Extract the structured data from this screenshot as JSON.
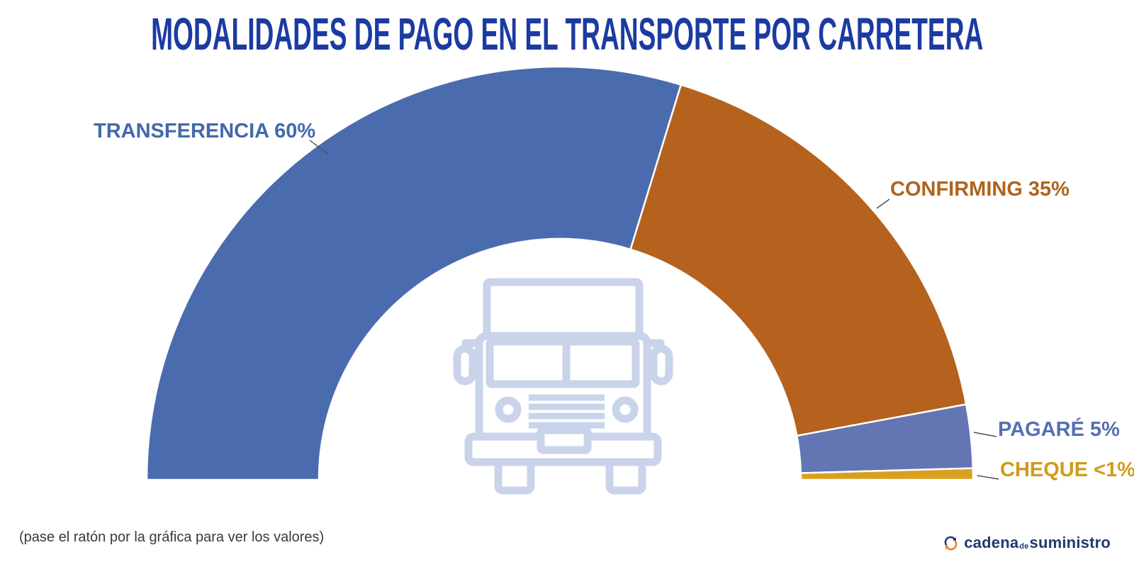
{
  "title": "MODALIDADES DE PAGO EN EL TRANSPORTE POR CARRETERA",
  "footnote": "(pase el ratón por la gráfica para ver los valores)",
  "logo": {
    "text_main": "cadena",
    "text_mid": "de",
    "text_end": "suministro",
    "icon": "cycle-arrows-icon",
    "navy": "#1e3a70",
    "orange": "#e87a25"
  },
  "colors": {
    "background": "#ffffff",
    "title": "#1c3ba2",
    "footnote": "#3a3a3a",
    "leader_line": "#4d4d4d",
    "segment_divider": "#ffffff",
    "center_icon": "#c9d3ea"
  },
  "center_icon": "truck-front-icon",
  "chart_data": {
    "type": "pie",
    "variant": "half-donut",
    "title": "MODALIDADES DE PAGO EN EL TRANSPORTE POR CARRETERA",
    "unit": "%",
    "legend_position": "none",
    "arc_degrees": 180,
    "segments": [
      {
        "key": "transferencia",
        "label": "TRANSFERENCIA",
        "value": 60,
        "value_display": "60%",
        "display": "TRANSFERENCIA 60%",
        "color": "#4a6cae",
        "label_color": "#4468ac"
      },
      {
        "key": "confirming",
        "label": "CONFIRMING",
        "value": 35,
        "value_display": "35%",
        "display": "CONFIRMING 35%",
        "color": "#b4621d",
        "label_color": "#b0621c"
      },
      {
        "key": "pagare",
        "label": "PAGARÉ",
        "value": 5,
        "value_display": "5%",
        "display": "PAGARÉ 5%",
        "color": "#6375b2",
        "label_color": "#5570b2"
      },
      {
        "key": "cheque",
        "label": "CHEQUE",
        "value": 0.9,
        "value_display": "<1%",
        "display": "CHEQUE <1%",
        "color": "#d9a01f",
        "label_color": "#d09a1b"
      }
    ]
  }
}
